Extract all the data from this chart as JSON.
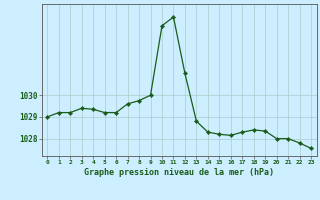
{
  "x": [
    0,
    1,
    2,
    3,
    4,
    5,
    6,
    7,
    8,
    9,
    10,
    11,
    12,
    13,
    14,
    15,
    16,
    17,
    18,
    19,
    20,
    21,
    22,
    23
  ],
  "y": [
    1029.0,
    1029.2,
    1029.2,
    1029.4,
    1029.35,
    1029.2,
    1029.2,
    1029.6,
    1029.75,
    1030.0,
    1033.2,
    1033.6,
    1031.0,
    1028.8,
    1028.3,
    1028.2,
    1028.15,
    1028.3,
    1028.4,
    1028.35,
    1028.0,
    1028.0,
    1027.8,
    1027.55
  ],
  "line_color": "#1a5c1a",
  "marker": "D",
  "marker_size": 2.2,
  "bg_color": "#cceeff",
  "grid_color": "#aacccc",
  "xlabel": "Graphe pression niveau de la mer (hPa)",
  "xlabel_color": "#1a5c1a",
  "tick_color": "#1a5c1a",
  "yticks": [
    1028,
    1029,
    1030
  ],
  "ylim": [
    1027.2,
    1034.2
  ],
  "xlim": [
    -0.5,
    23.5
  ],
  "axis_color": "#555555"
}
